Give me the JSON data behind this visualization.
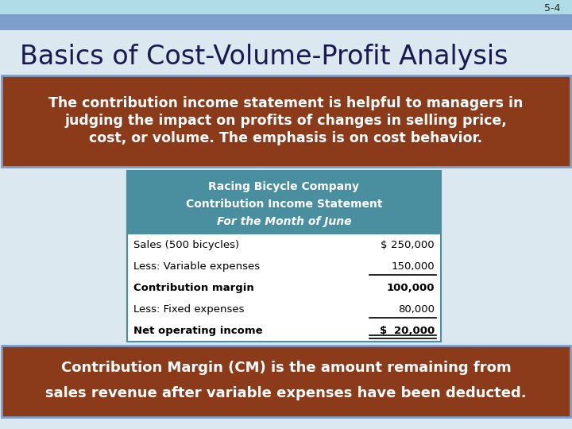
{
  "slide_number": "5-4",
  "title": "Basics of Cost-Volume-Profit Analysis",
  "top_bar_color": "#b0dce8",
  "header_bar_color": "#7b9fc8",
  "bg_color": "#dce8f0",
  "brown_color": "#8B3A1A",
  "brown_text_color": "#ffffff",
  "table_header_color": "#4a8fa0",
  "table_header_text": "#ffffff",
  "table_bg": "#ffffff",
  "table_border": "#4a8fa0",
  "top_box_text_line1": "The contribution income statement is helpful to managers in",
  "top_box_text_line2": "judging the impact on profits of changes in selling price,",
  "top_box_text_line3": "cost, or volume. The emphasis is on cost behavior.",
  "bottom_box_text_line1": "Contribution Margin (CM) is the amount remaining from",
  "bottom_box_text_line2": "sales revenue after variable expenses have been deducted.",
  "table_title_line1": "Racing Bicycle Company",
  "table_title_line2": "Contribution Income Statement",
  "table_title_line3": "For the Month of June",
  "table_rows": [
    [
      "Sales (500 bicycles)",
      "$",
      "250,000"
    ],
    [
      "Less: Variable expenses",
      "",
      "150,000"
    ],
    [
      "Contribution margin",
      "",
      "100,000"
    ],
    [
      "Less: Fixed expenses",
      "",
      "80,000"
    ],
    [
      "Net operating income",
      "$",
      "20,000"
    ]
  ]
}
